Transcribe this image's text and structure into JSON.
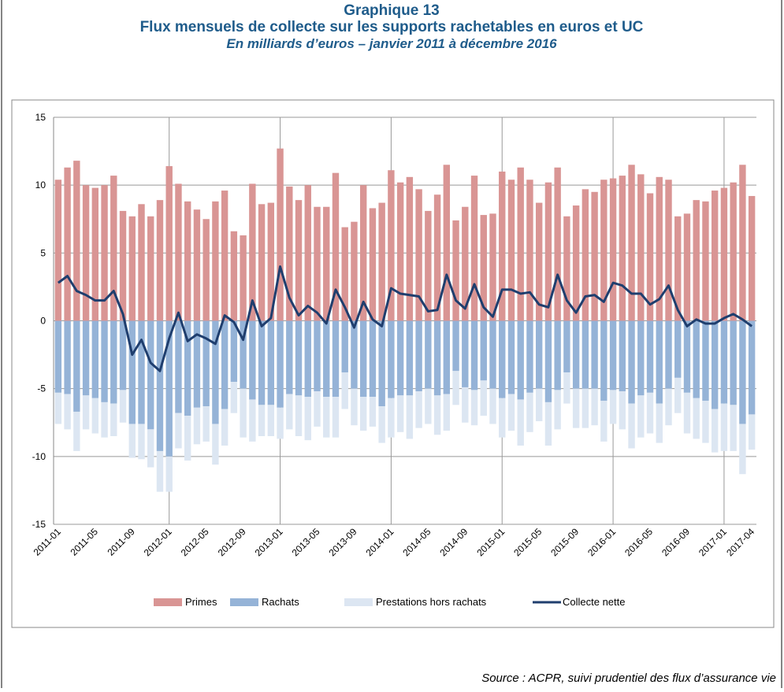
{
  "chart_data": {
    "type": "bar",
    "heading": "Graphique 13",
    "title": "Flux mensuels de collecte sur les supports rachetables en euros et UC",
    "subtitle": "En milliards d’euros – janvier 2011 à décembre 2016",
    "source": "Source : ACPR, suivi prudentiel des flux d’assurance vie",
    "categories": [
      "2011-01",
      null,
      null,
      null,
      "2011-05",
      null,
      null,
      null,
      "2011-09",
      null,
      null,
      null,
      "2012-01",
      null,
      null,
      null,
      "2012-05",
      null,
      null,
      null,
      "2012-09",
      null,
      null,
      null,
      "2013-01",
      null,
      null,
      null,
      "2013-05",
      null,
      null,
      null,
      "2013-09",
      null,
      null,
      null,
      "2014-01",
      null,
      null,
      null,
      "2014-05",
      null,
      null,
      null,
      "2014-09",
      null,
      null,
      null,
      "2015-01",
      null,
      null,
      null,
      "2015-05",
      null,
      null,
      null,
      "2015-09",
      null,
      null,
      null,
      "2016-01",
      null,
      null,
      null,
      "2016-05",
      null,
      null,
      null,
      "2016-09",
      null,
      null,
      null,
      "2017-01",
      null,
      null,
      "2017-04"
    ],
    "series": [
      {
        "name": "Primes",
        "type": "bar",
        "color": "#d99594",
        "values": [
          10.4,
          11.3,
          11.8,
          10.0,
          9.8,
          10.0,
          10.7,
          8.1,
          7.7,
          8.6,
          7.7,
          8.9,
          11.4,
          10.1,
          8.8,
          8.2,
          7.5,
          8.8,
          9.6,
          6.6,
          6.3,
          10.1,
          8.6,
          8.7,
          12.7,
          9.9,
          8.9,
          10.0,
          8.4,
          8.4,
          10.9,
          6.9,
          7.3,
          10.0,
          8.3,
          8.7,
          11.1,
          10.2,
          10.6,
          9.7,
          8.1,
          9.3,
          11.5,
          7.4,
          8.4,
          10.7,
          7.8,
          7.9,
          11.0,
          10.4,
          11.3,
          10.4,
          8.7,
          10.2,
          11.3,
          7.7,
          8.5,
          9.7,
          9.5,
          10.4,
          10.5,
          10.7,
          11.5,
          10.8,
          9.4,
          10.6,
          10.4,
          7.7,
          7.9,
          8.9,
          8.8,
          9.6,
          9.8,
          10.2,
          11.5,
          9.2
        ]
      },
      {
        "name": "Rachats",
        "type": "bar",
        "color": "#95b3d7",
        "values": [
          -5.3,
          -5.4,
          -6.7,
          -5.5,
          -5.7,
          -6.0,
          -6.1,
          -5.1,
          -7.6,
          -7.6,
          -8.0,
          -9.6,
          -10.0,
          -6.8,
          -7.0,
          -6.4,
          -6.3,
          -7.6,
          -6.5,
          -4.5,
          -5.0,
          -5.8,
          -6.2,
          -6.2,
          -6.4,
          -5.4,
          -5.5,
          -5.6,
          -5.2,
          -5.6,
          -5.6,
          -3.8,
          -5.0,
          -5.6,
          -5.6,
          -6.3,
          -5.7,
          -5.5,
          -5.5,
          -5.2,
          -5.0,
          -5.5,
          -5.4,
          -3.7,
          -4.9,
          -5.1,
          -4.4,
          -5.0,
          -5.7,
          -5.4,
          -5.8,
          -5.3,
          -5.0,
          -6.0,
          -5.1,
          -3.8,
          -5.0,
          -5.0,
          -5.0,
          -5.9,
          -5.1,
          -5.2,
          -6.1,
          -5.5,
          -5.3,
          -6.1,
          -5.0,
          -4.2,
          -5.3,
          -5.7,
          -5.9,
          -6.5,
          -6.1,
          -6.2,
          -7.6,
          -6.9
        ]
      },
      {
        "name": "Prestations hors rachats",
        "type": "bar",
        "color": "#dce6f2",
        "values": [
          -2.3,
          -2.6,
          -2.9,
          -2.5,
          -2.6,
          -2.6,
          -2.4,
          -2.4,
          -2.5,
          -2.6,
          -2.8,
          -3.0,
          -2.6,
          -2.6,
          -3.3,
          -2.7,
          -2.6,
          -3.0,
          -2.7,
          -2.3,
          -3.6,
          -3.1,
          -2.3,
          -2.3,
          -2.3,
          -2.6,
          -3.0,
          -3.2,
          -2.6,
          -3.0,
          -3.0,
          -2.7,
          -2.7,
          -2.5,
          -2.2,
          -2.7,
          -2.9,
          -2.7,
          -3.2,
          -2.7,
          -2.6,
          -2.9,
          -2.7,
          -2.5,
          -2.6,
          -2.6,
          -2.6,
          -2.6,
          -2.9,
          -2.7,
          -3.4,
          -2.9,
          -2.4,
          -3.2,
          -2.9,
          -2.3,
          -2.9,
          -2.9,
          -2.7,
          -3.0,
          -2.5,
          -2.8,
          -3.3,
          -3.1,
          -3.0,
          -2.9,
          -2.7,
          -2.6,
          -3.0,
          -3.0,
          -3.1,
          -3.2,
          -3.5,
          -3.4,
          -3.7,
          -2.6
        ]
      },
      {
        "name": "Collecte nette",
        "type": "line",
        "color": "#1f3e6e",
        "values": [
          2.8,
          3.3,
          2.2,
          1.9,
          1.5,
          1.5,
          2.2,
          0.5,
          -2.5,
          -1.4,
          -3.1,
          -3.7,
          -1.3,
          0.6,
          -1.5,
          -1.0,
          -1.3,
          -1.7,
          0.4,
          -0.1,
          -1.4,
          1.5,
          -0.4,
          0.2,
          4.0,
          1.7,
          0.4,
          1.1,
          0.6,
          -0.2,
          2.3,
          1.0,
          -0.5,
          1.4,
          0.1,
          -0.4,
          2.4,
          2.0,
          1.9,
          1.8,
          0.7,
          0.8,
          3.4,
          1.5,
          0.9,
          2.7,
          1.0,
          0.3,
          2.3,
          2.3,
          2.0,
          2.1,
          1.2,
          1.0,
          3.4,
          1.5,
          0.6,
          1.8,
          1.9,
          1.4,
          2.8,
          2.6,
          2.0,
          2.0,
          1.2,
          1.6,
          2.6,
          0.8,
          -0.4,
          0.1,
          -0.2,
          -0.2,
          0.2,
          0.5,
          0.1,
          -0.4
        ]
      }
    ],
    "ylim": [
      -15,
      15
    ],
    "yticks": [
      -15,
      -10,
      -5,
      0,
      5,
      10,
      15
    ],
    "grid": true,
    "legend": "bottom"
  }
}
